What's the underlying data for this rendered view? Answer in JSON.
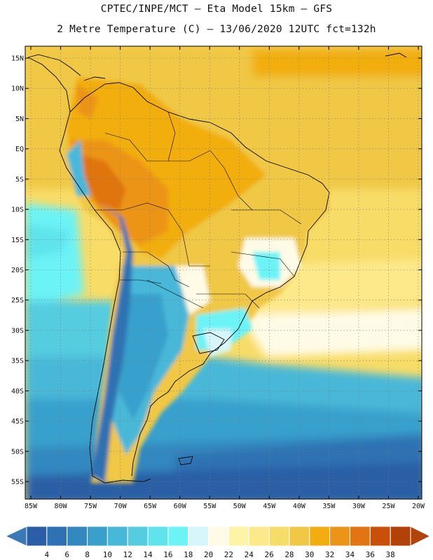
{
  "header": {
    "line1": "CPTEC/INPE/MCT –  Eta Model 15km – GFS",
    "line2": "2 Metre Temperature (C) – 13/06/2020 12UTC fct=132h"
  },
  "map": {
    "lat_labels": [
      "15N",
      "10N",
      "5N",
      "EQ",
      "5S",
      "10S",
      "15S",
      "20S",
      "25S",
      "30S",
      "35S",
      "40S",
      "45S",
      "50S",
      "55S"
    ],
    "lon_labels": [
      "85W",
      "80W",
      "75W",
      "70W",
      "65W",
      "60W",
      "55W",
      "50W",
      "45W",
      "40W",
      "35W",
      "30W",
      "25W",
      "20W"
    ],
    "lat_values": [
      15,
      10,
      5,
      0,
      -5,
      -10,
      -15,
      -20,
      -25,
      -30,
      -35,
      -40,
      -45,
      -50,
      -55
    ],
    "lon_values": [
      -85,
      -80,
      -75,
      -70,
      -65,
      -60,
      -55,
      -50,
      -45,
      -40,
      -35,
      -30,
      -25,
      -20
    ]
  },
  "colorbar": {
    "labels": [
      "4",
      "6",
      "8",
      "10",
      "12",
      "14",
      "16",
      "18",
      "20",
      "22",
      "24",
      "26",
      "28",
      "30",
      "32",
      "34",
      "36",
      "38"
    ],
    "colors": [
      "#2a5ea6",
      "#2f72b3",
      "#3388c0",
      "#39a0cc",
      "#48b8d8",
      "#55cce0",
      "#5fe3ec",
      "#6cf3f6",
      "#d6f6fb",
      "#fffbe6",
      "#fff3a8",
      "#fde98a",
      "#f8dc68",
      "#f0c845",
      "#f2ae10",
      "#ec9418",
      "#e17511",
      "#c85008",
      "#b34208"
    ],
    "under_color": "#3a78b6",
    "over_color": "#b0440c"
  }
}
